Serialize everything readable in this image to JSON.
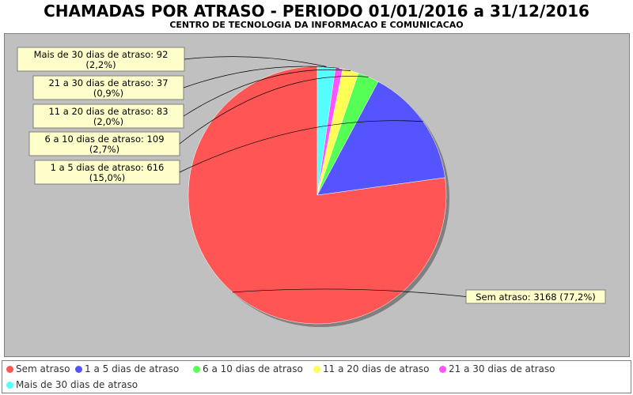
{
  "chart_data": {
    "type": "pie",
    "title": "CHAMADAS POR ATRASO - PERIODO 01/01/2016 a 31/12/2016",
    "subtitle": "CENTRO DE TECNOLOGIA DA INFORMACAO E COMUNICACAO",
    "legend_position": "bottom",
    "slices": [
      {
        "name": "Sem atraso",
        "value": 3168,
        "percent": "77,2%",
        "color": "#ff5555",
        "label": "Sem atraso: 3168 (77,2%)"
      },
      {
        "name": "1 a 5 dias de atraso",
        "value": 616,
        "percent": "15,0%",
        "color": "#5555ff",
        "label_line1": "1 a 5 dias de atraso: 616",
        "label_line2": "(15,0%)"
      },
      {
        "name": "6 a 10 dias de atraso",
        "value": 109,
        "percent": "2,7%",
        "color": "#55ff55",
        "label_line1": "6 a 10 dias de atraso: 109",
        "label_line2": "(2,7%)"
      },
      {
        "name": "11 a 20 dias de atraso",
        "value": 83,
        "percent": "2,0%",
        "color": "#ffff55",
        "label_line1": "11 a 20 dias de atraso: 83",
        "label_line2": "(2,0%)"
      },
      {
        "name": "21 a 30 dias de atraso",
        "value": 37,
        "percent": "0,9%",
        "color": "#ff55ff",
        "label_line1": "21 a 30 dias de atraso: 37",
        "label_line2": "(0,9%)"
      },
      {
        "name": "Mais de 30 dias de atraso",
        "value": 92,
        "percent": "2,2%",
        "color": "#55ffff",
        "label_line1": "Mais de 30 dias de atraso: 92",
        "label_line2": "(2,2%)"
      }
    ]
  }
}
